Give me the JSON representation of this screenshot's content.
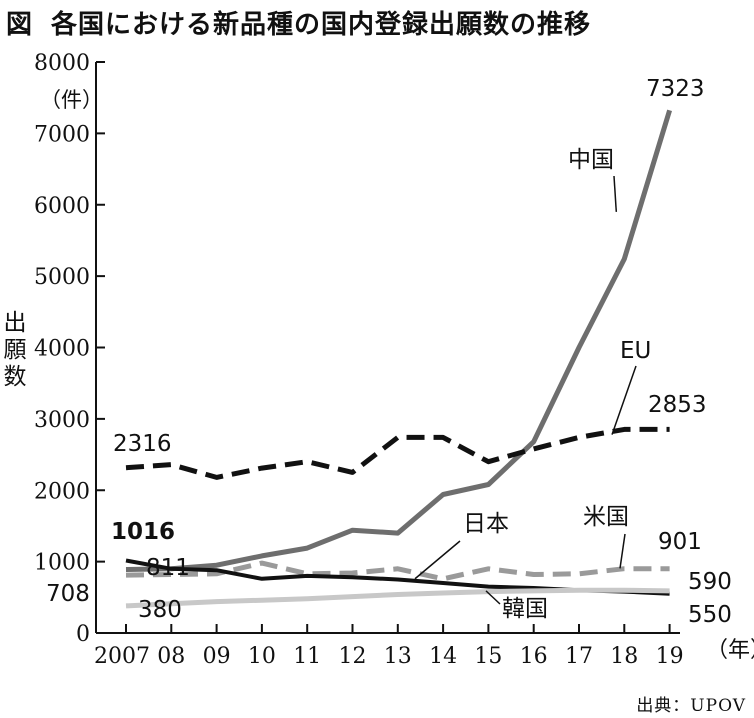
{
  "title": {
    "prefix": "図",
    "text": "各国における新品種の国内登録出願数の推移"
  },
  "y_unit": "（件）",
  "y_axis_label": "出願数",
  "x_unit": "（年）",
  "source": "出典：UPOV",
  "chart_data": {
    "type": "line",
    "x": [
      "2007",
      "08",
      "09",
      "10",
      "11",
      "12",
      "13",
      "14",
      "15",
      "16",
      "17",
      "18",
      "19"
    ],
    "ylim": [
      0,
      8000
    ],
    "yticks": [
      0,
      1000,
      2000,
      3000,
      4000,
      5000,
      6000,
      7000,
      8000
    ],
    "grid": false,
    "series": [
      {
        "name": "中国",
        "color": "#6e6e6e",
        "dash": "solid",
        "values": [
          890,
          900,
          950,
          1080,
          1190,
          1440,
          1400,
          1940,
          2080,
          2680,
          4000,
          5240,
          7323
        ],
        "end_label": "7323"
      },
      {
        "name": "EU",
        "color": "#111111",
        "dash": "dashed",
        "values": [
          2316,
          2360,
          2180,
          2310,
          2400,
          2250,
          2740,
          2740,
          2400,
          2580,
          2740,
          2853,
          2853
        ],
        "start_label": "2316",
        "end_label": "2853"
      },
      {
        "name": "米国",
        "color": "#9a9a9a",
        "dash": "dashed",
        "values": [
          811,
          820,
          830,
          980,
          830,
          840,
          900,
          760,
          900,
          820,
          830,
          901,
          901
        ],
        "start_label": "811",
        "end_label": "901"
      },
      {
        "name": "日本",
        "color": "#111111",
        "dash": "solid",
        "values": [
          1016,
          900,
          880,
          760,
          800,
          780,
          750,
          700,
          650,
          630,
          600,
          580,
          550
        ],
        "start_label": "1016",
        "end_label": "550"
      },
      {
        "name": "韓国",
        "color": "#c8c8c8",
        "dash": "solid",
        "values": [
          380,
          410,
          440,
          460,
          480,
          510,
          540,
          560,
          580,
          590,
          600,
          600,
          590
        ],
        "start_label": "380",
        "end_label": "590"
      }
    ],
    "extra_labels": [
      "708"
    ]
  }
}
